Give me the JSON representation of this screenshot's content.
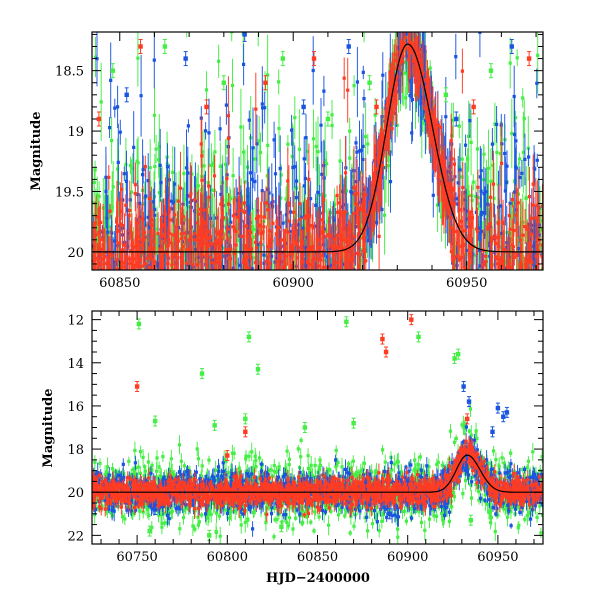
{
  "chart_data": [
    {
      "type": "scatter",
      "panel": "top",
      "title": "",
      "xlabel": "",
      "ylabel": "Magnitude",
      "xlim": [
        60842,
        60972
      ],
      "ylim": [
        20.15,
        18.18
      ],
      "y_inverted": true,
      "x_ticks": [
        60850,
        60900,
        60950
      ],
      "x_tick_labels": [
        "60850",
        "60900",
        "60950"
      ],
      "y_ticks": [
        18.5,
        19,
        19.5,
        20
      ],
      "y_tick_labels": [
        "18.5",
        "19",
        "19.5",
        "20"
      ],
      "series": [
        {
          "name": "green",
          "color": "#44ee44"
        },
        {
          "name": "blue",
          "color": "#1a55e0"
        },
        {
          "name": "red",
          "color": "#ff3b22"
        }
      ],
      "model_curve": {
        "color": "#000000",
        "baseline_mag": 20.0,
        "peak_x": 60933,
        "peak_mag": 18.28,
        "rise_halfwidth_days": 8.5,
        "decline_halfwidth_days": 10
      },
      "scatter_data": [
        {
          "series": "green",
          "x": 60848,
          "y": 18.5
        },
        {
          "series": "green",
          "x": 60863,
          "y": 18.3
        },
        {
          "series": "green",
          "x": 60880,
          "y": 18.6
        },
        {
          "series": "green",
          "x": 60897,
          "y": 18.4
        },
        {
          "series": "green",
          "x": 60910,
          "y": 18.9
        },
        {
          "series": "green",
          "x": 60922,
          "y": 18.6
        },
        {
          "series": "green",
          "x": 60944,
          "y": 18.7
        },
        {
          "series": "green",
          "x": 60957,
          "y": 18.5
        },
        {
          "series": "blue",
          "x": 60852,
          "y": 18.7
        },
        {
          "series": "blue",
          "x": 60869,
          "y": 18.4
        },
        {
          "series": "blue",
          "x": 60886,
          "y": 18.2
        },
        {
          "series": "blue",
          "x": 60903,
          "y": 18.8
        },
        {
          "series": "blue",
          "x": 60916,
          "y": 18.3
        },
        {
          "series": "blue",
          "x": 60947,
          "y": 18.9
        },
        {
          "series": "blue",
          "x": 60963,
          "y": 18.3
        },
        {
          "series": "red",
          "x": 60844,
          "y": 18.9
        },
        {
          "series": "red",
          "x": 60856,
          "y": 18.3
        },
        {
          "series": "red",
          "x": 60875,
          "y": 18.8
        },
        {
          "series": "red",
          "x": 60892,
          "y": 18.6
        },
        {
          "series": "red",
          "x": 60906,
          "y": 18.4
        },
        {
          "series": "red",
          "x": 60924,
          "y": 18.8
        },
        {
          "series": "red",
          "x": 60952,
          "y": 18.8
        },
        {
          "series": "red",
          "x": 60968,
          "y": 18.4
        }
      ]
    },
    {
      "type": "scatter",
      "panel": "bottom",
      "title": "",
      "xlabel": "HJD−2400000",
      "ylabel": "Magnitude",
      "xlim": [
        60725,
        60975
      ],
      "ylim": [
        22.4,
        11.6
      ],
      "y_inverted": true,
      "x_ticks": [
        60750,
        60800,
        60850,
        60900,
        60950
      ],
      "x_tick_labels": [
        "60750",
        "60800",
        "60850",
        "60900",
        "60950"
      ],
      "y_ticks": [
        12,
        14,
        16,
        18,
        20,
        22
      ],
      "y_tick_labels": [
        "12",
        "14",
        "16",
        "18",
        "20",
        "22"
      ],
      "series": [
        {
          "name": "green",
          "color": "#44ee44"
        },
        {
          "name": "blue",
          "color": "#1a55e0"
        },
        {
          "name": "red",
          "color": "#ff3b22"
        }
      ],
      "model_curve": {
        "color": "#000000",
        "baseline_mag": 20.0,
        "peak_x": 60933,
        "peak_mag": 18.28,
        "rise_halfwidth_days": 8.5,
        "decline_halfwidth_days": 10
      },
      "scatter_data": [
        {
          "series": "green",
          "x": 60751,
          "y": 12.2
        },
        {
          "series": "green",
          "x": 60866,
          "y": 12.1
        },
        {
          "series": "green",
          "x": 60812,
          "y": 12.8
        },
        {
          "series": "green",
          "x": 60906,
          "y": 12.8
        },
        {
          "series": "green",
          "x": 60926,
          "y": 13.8
        },
        {
          "series": "green",
          "x": 60817,
          "y": 14.3
        },
        {
          "series": "green",
          "x": 60786,
          "y": 14.5
        },
        {
          "series": "green",
          "x": 60928,
          "y": 13.6
        },
        {
          "series": "green",
          "x": 60810,
          "y": 16.6
        },
        {
          "series": "green",
          "x": 60793,
          "y": 16.9
        },
        {
          "series": "green",
          "x": 60760,
          "y": 16.7
        },
        {
          "series": "green",
          "x": 60843,
          "y": 17.0
        },
        {
          "series": "green",
          "x": 60870,
          "y": 16.8
        },
        {
          "series": "green",
          "x": 60757,
          "y": 21.8
        },
        {
          "series": "green",
          "x": 60790,
          "y": 22.0
        },
        {
          "series": "green",
          "x": 60830,
          "y": 21.6
        },
        {
          "series": "green",
          "x": 60935,
          "y": 21.3
        },
        {
          "series": "red",
          "x": 60750,
          "y": 15.1
        },
        {
          "series": "red",
          "x": 60886,
          "y": 12.9
        },
        {
          "series": "red",
          "x": 60888,
          "y": 13.5
        },
        {
          "series": "red",
          "x": 60902,
          "y": 12.0
        },
        {
          "series": "red",
          "x": 60933,
          "y": 16.6
        },
        {
          "series": "red",
          "x": 60810,
          "y": 17.2
        },
        {
          "series": "red",
          "x": 60800,
          "y": 18.3
        },
        {
          "series": "blue",
          "x": 60931,
          "y": 15.1
        },
        {
          "series": "blue",
          "x": 60934,
          "y": 15.8
        },
        {
          "series": "blue",
          "x": 60950,
          "y": 16.1
        },
        {
          "series": "blue",
          "x": 60953,
          "y": 16.5
        },
        {
          "series": "blue",
          "x": 60955,
          "y": 16.3
        },
        {
          "series": "blue",
          "x": 60947,
          "y": 17.2
        },
        {
          "series": "blue",
          "x": 60890,
          "y": 21.0
        },
        {
          "series": "blue",
          "x": 60760,
          "y": 20.8
        }
      ]
    }
  ]
}
